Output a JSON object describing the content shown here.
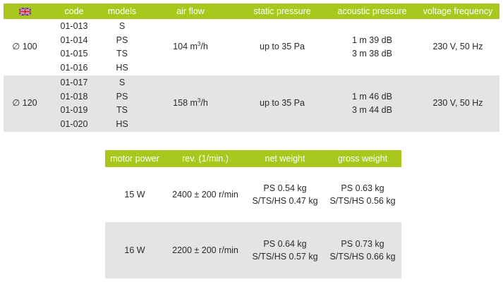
{
  "colors": {
    "header_bg": "#a8c81e",
    "header_text": "#ffffff",
    "alt_row_bg": "#e4e4e4"
  },
  "table1": {
    "flag_icon": "uk-flag-icon",
    "headers": {
      "code": "code",
      "models": "models",
      "air_flow": "air flow",
      "static_pressure": "static pressure",
      "acoustic_pressure": "acoustic pressure",
      "voltage_frequency": "voltage frequency"
    },
    "rows": [
      {
        "diameter": "∅ 100",
        "codes": [
          "01-013",
          "01-014",
          "01-015",
          "01-016"
        ],
        "models": [
          "S",
          "PS",
          "TS",
          "HS"
        ],
        "air_flow_value": "104 m",
        "air_flow_exp": "3",
        "air_flow_unit": "/h",
        "static_pressure": "up to 35 Pa",
        "acoustic": [
          "1 m 39 dB",
          "3 m 38 dB"
        ],
        "voltage": "230 V, 50 Hz"
      },
      {
        "diameter": "∅ 120",
        "codes": [
          "01-017",
          "01-018",
          "01-019",
          "01-020"
        ],
        "models": [
          "S",
          "PS",
          "TS",
          "HS"
        ],
        "air_flow_value": "158 m",
        "air_flow_exp": "3",
        "air_flow_unit": "/h",
        "static_pressure": "up to 35 Pa",
        "acoustic": [
          "1 m 46 dB",
          "3 m 44 dB"
        ],
        "voltage": "230 V, 50 Hz"
      }
    ]
  },
  "table2": {
    "headers": {
      "motor_power": "motor power",
      "rev": "rev. (1/min.)",
      "net_weight": "net weight",
      "gross_weight": "gross weight"
    },
    "rows": [
      {
        "motor_power": "15 W",
        "rev": "2400 ± 200 r/min",
        "net_weight": [
          "PS 0.54 kg",
          "S/TS/HS 0.47 kg"
        ],
        "gross_weight": [
          "PS 0.63 kg",
          "S/TS/HS 0.56 kg"
        ]
      },
      {
        "motor_power": "16 W",
        "rev": "2200 ± 200 r/min",
        "net_weight": [
          "PS 0.64 kg",
          "S/TS/HS 0.57 kg"
        ],
        "gross_weight": [
          "PS 0.73 kg",
          "S/TS/HS 0.66 kg"
        ]
      }
    ]
  }
}
